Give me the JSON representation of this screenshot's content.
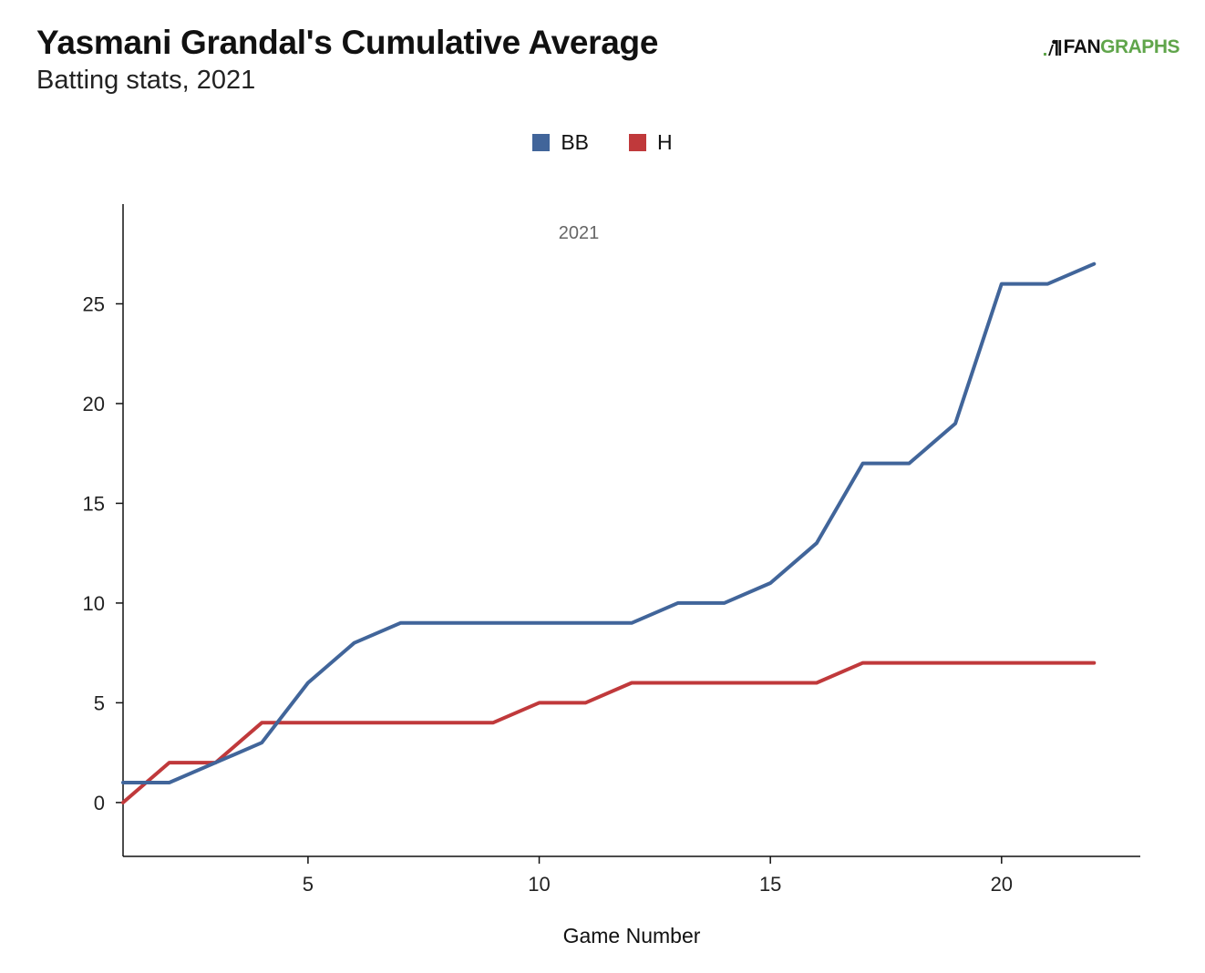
{
  "header": {
    "title": "Yasmani Grandal's Cumulative Average",
    "subtitle": "Batting stats, 2021"
  },
  "logo": {
    "text_fan": "FAN",
    "text_graphs": "GRAPHS",
    "icon": "fangraphs-batter-icon"
  },
  "chart_data": {
    "type": "line",
    "title": "Yasmani Grandal's Cumulative Average",
    "subtitle": "Batting stats, 2021",
    "annotation": "2021",
    "xlabel": "Game Number",
    "ylabel": "",
    "xlim": [
      1,
      23
    ],
    "ylim": [
      -2.7,
      30
    ],
    "x_ticks": [
      5,
      10,
      15,
      20
    ],
    "y_ticks": [
      0,
      5,
      10,
      15,
      20,
      25
    ],
    "grid": false,
    "legend_position": "top-center",
    "x": [
      1,
      2,
      3,
      4,
      5,
      6,
      7,
      8,
      9,
      10,
      11,
      12,
      13,
      14,
      15,
      16,
      17,
      18,
      19,
      20,
      21,
      22
    ],
    "series": [
      {
        "name": "BB",
        "color": "#41659a",
        "values": [
          1,
          1,
          2,
          3,
          6,
          8,
          9,
          9,
          9,
          9,
          9,
          9,
          10,
          10,
          11,
          13,
          17,
          17,
          19,
          26,
          26,
          27
        ]
      },
      {
        "name": "H",
        "color": "#c0393b",
        "values": [
          0,
          2,
          2,
          4,
          4,
          4,
          4,
          4,
          4,
          5,
          5,
          6,
          6,
          6,
          6,
          6,
          7,
          7,
          7,
          7,
          7,
          7
        ]
      }
    ]
  }
}
